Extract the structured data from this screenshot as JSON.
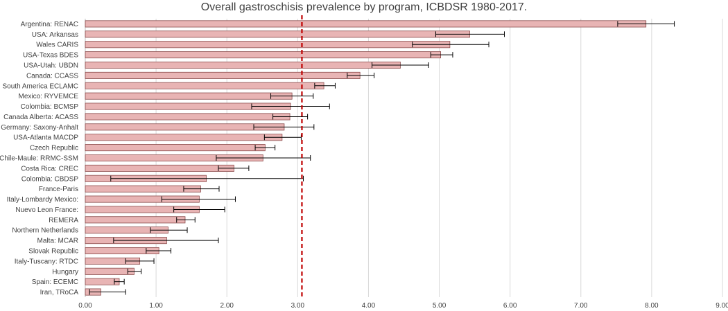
{
  "chart_data": {
    "type": "bar",
    "orientation": "horizontal",
    "title": "Overall gastroschisis prevalence by program, ICBDSR 1980-2017.",
    "xlabel": "",
    "ylabel": "",
    "xlim": [
      0,
      9
    ],
    "x_ticks": [
      "0.00",
      "1.00",
      "2.00",
      "3.00",
      "4.00",
      "5.00",
      "6.00",
      "7.00",
      "8.00",
      "9.00"
    ],
    "grid": "vertical",
    "reference_line": {
      "value": 3.06,
      "style": "dashed",
      "color": "#c00000"
    },
    "colors": {
      "bar_fill": "#e8b4b4",
      "bar_stroke": "#8a4a4a",
      "error_bar": "#000000",
      "grid": "#d9d9d9"
    },
    "categories": [
      "Argentina: RENAC",
      "USA: Arkansas",
      "Wales CARIS",
      "USA-Texas BDES",
      "USA-Utah: UBDN",
      "Canada: CCASS",
      "South America ECLAMC",
      "Mexico: RYVEMCE",
      "Colombia: BCMSP",
      "Canada Alberta: ACASS",
      "Germany: Saxony-Anhalt",
      "USA-Atlanta MACDP",
      "Czech Republic",
      "Chile-Maule: RRMC-SSM",
      "Costa Rica: CREC",
      "Colombia: CBDSP",
      "France-Paris",
      "Italy-Lombardy Mexico:",
      "Nuevo Leon France:",
      "REMERA",
      "Northern Netherlands",
      "Malta: MCAR",
      "Slovak Republic",
      "Italy-Tuscany: RTDC",
      "Hungary",
      "Spain: ECEMC",
      "Iran, TRoCA"
    ],
    "values": [
      7.92,
      5.43,
      5.15,
      5.02,
      4.45,
      3.88,
      3.37,
      2.92,
      2.9,
      2.89,
      2.81,
      2.78,
      2.54,
      2.51,
      2.1,
      1.71,
      1.63,
      1.61,
      1.61,
      1.41,
      1.17,
      1.15,
      1.04,
      0.77,
      0.69,
      0.48,
      0.22
    ],
    "ci_lower": [
      7.52,
      4.95,
      4.62,
      4.88,
      4.05,
      3.7,
      3.24,
      2.62,
      2.35,
      2.65,
      2.38,
      2.53,
      2.4,
      1.85,
      1.88,
      0.36,
      1.39,
      1.08,
      1.25,
      1.29,
      0.92,
      0.4,
      0.86,
      0.57,
      0.6,
      0.41,
      0.06
    ],
    "ci_upper": [
      8.32,
      5.92,
      5.7,
      5.19,
      4.85,
      4.08,
      3.53,
      3.22,
      3.45,
      3.14,
      3.23,
      3.05,
      2.68,
      3.18,
      2.31,
      3.08,
      1.89,
      2.12,
      1.97,
      1.55,
      1.44,
      1.88,
      1.21,
      0.97,
      0.79,
      0.55,
      0.57
    ]
  }
}
